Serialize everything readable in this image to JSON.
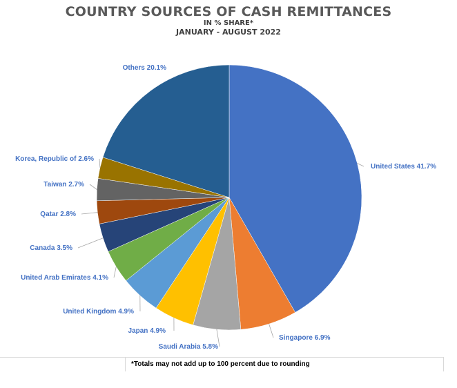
{
  "chart_data": {
    "type": "pie",
    "title": "COUNTRY SOURCES OF CASH REMITTANCES",
    "subtitle": "IN % SHARE*",
    "period": "JANUARY - AUGUST 2022",
    "unit": "%",
    "slices": [
      {
        "label": "United States 41.7%",
        "value": 41.7,
        "color": "#4472c4"
      },
      {
        "label": "Singapore 6.9%",
        "value": 6.9,
        "color": "#ed7d31"
      },
      {
        "label": "Saudi Arabia 5.8%",
        "value": 5.8,
        "color": "#a5a5a5"
      },
      {
        "label": "Japan 4.9%",
        "value": 4.9,
        "color": "#ffc000"
      },
      {
        "label": "United Kingdom 4.9%",
        "value": 4.9,
        "color": "#5b9bd5"
      },
      {
        "label": "United Arab Emirates 4.1%",
        "value": 4.1,
        "color": "#70ad47"
      },
      {
        "label": "Canada 3.5%",
        "value": 3.5,
        "color": "#264478"
      },
      {
        "label": "Qatar 2.8%",
        "value": 2.8,
        "color": "#9e480e"
      },
      {
        "label": "Taiwan 2.7%",
        "value": 2.7,
        "color": "#636363"
      },
      {
        "label": "Korea, Republic of 2.6%",
        "value": 2.6,
        "color": "#997300"
      },
      {
        "label": "Others 20.1%",
        "value": 20.1,
        "color": "#255e91"
      }
    ],
    "footnote": "*Totals may not add up to 100 percent due to rounding"
  }
}
